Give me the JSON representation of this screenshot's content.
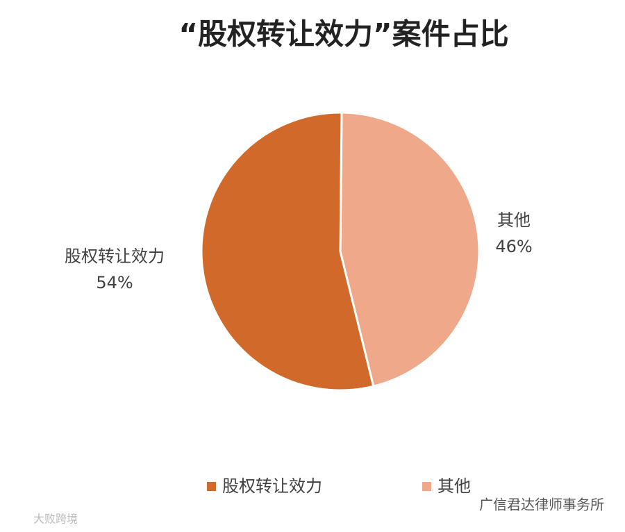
{
  "chart_data": {
    "type": "pie",
    "title": "“股权转让效力”案件占比",
    "categories": [
      "股权转让效力",
      "其他"
    ],
    "values": [
      54,
      46
    ],
    "value_labels": [
      "54%",
      "46%"
    ],
    "colors": [
      "#d0692a",
      "#f0a88a"
    ],
    "legend": "bottom"
  },
  "watermarks": [
    "广信君达律师事务所",
    "大败跨境"
  ]
}
